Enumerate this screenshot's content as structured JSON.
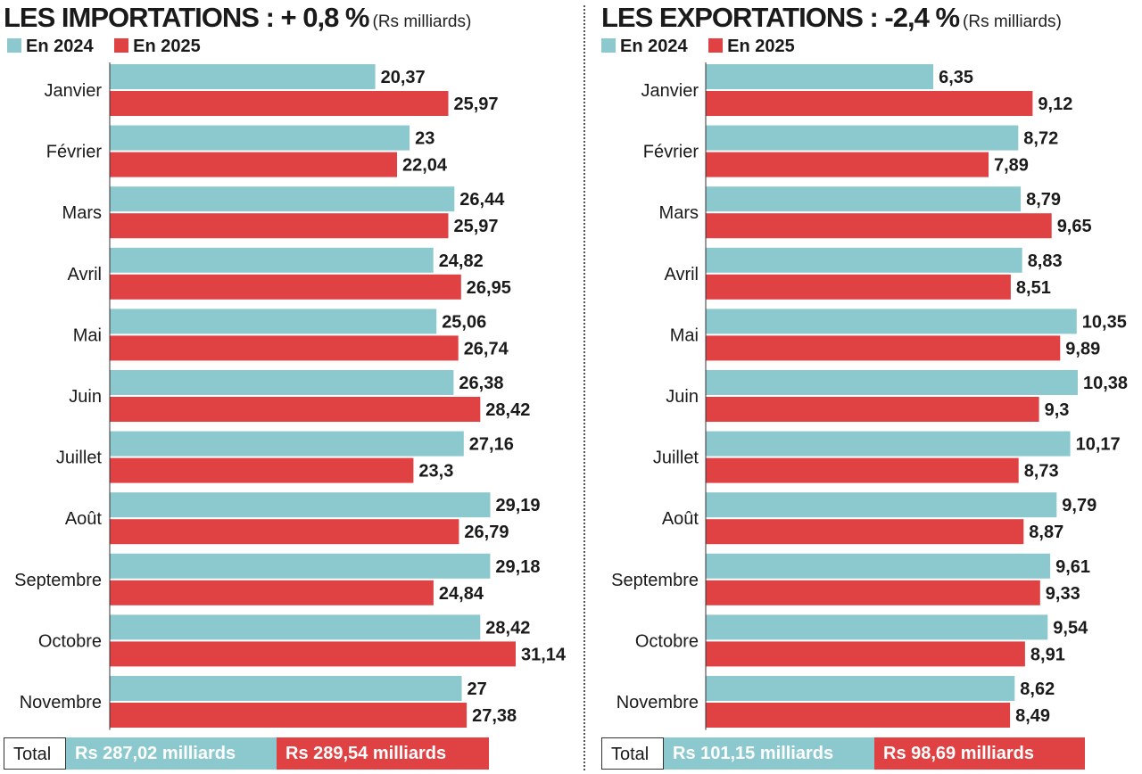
{
  "colors": {
    "y2024": "#8cc9cf",
    "y2025": "#e04244"
  },
  "legend": {
    "y2024": "En 2024",
    "y2025": "En 2025"
  },
  "totals_label": "Total",
  "chart_data": [
    {
      "type": "bar",
      "orientation": "horizontal",
      "title": "LES IMPORTATIONS : + 0,8 %",
      "unit": "(Rs milliards)",
      "categories": [
        "Janvier",
        "Février",
        "Mars",
        "Avril",
        "Mai",
        "Juin",
        "Juillet",
        "Août",
        "Septembre",
        "Octobre",
        "Novembre"
      ],
      "series": [
        {
          "name": "En 2024",
          "values": [
            20.37,
            23,
            26.44,
            24.82,
            25.06,
            26.38,
            27.16,
            29.19,
            29.18,
            28.42,
            27
          ],
          "labels": [
            "20,37",
            "23",
            "26,44",
            "24,82",
            "25,06",
            "26,38",
            "27,16",
            "29,19",
            "29,18",
            "28,42",
            "27"
          ]
        },
        {
          "name": "En 2025",
          "values": [
            25.97,
            22.04,
            25.97,
            26.95,
            26.74,
            28.42,
            23.3,
            26.79,
            24.84,
            31.14,
            27.38
          ],
          "labels": [
            "25,97",
            "22,04",
            "25,97",
            "26,95",
            "26,74",
            "28,42",
            "23,3",
            "26,79",
            "24,84",
            "31,14",
            "27,38"
          ]
        }
      ],
      "xlim": [
        0,
        31.14
      ],
      "totals": {
        "y2024": "Rs 287,02 milliards",
        "y2025": "Rs 289,54 milliards"
      }
    },
    {
      "type": "bar",
      "orientation": "horizontal",
      "title": "LES EXPORTATIONS : -2,4 %",
      "unit": "(Rs milliards)",
      "categories": [
        "Janvier",
        "Février",
        "Mars",
        "Avril",
        "Mai",
        "Juin",
        "Juillet",
        "Août",
        "Septembre",
        "Octobre",
        "Novembre"
      ],
      "series": [
        {
          "name": "En 2024",
          "values": [
            6.35,
            8.72,
            8.79,
            8.83,
            10.35,
            10.38,
            10.17,
            9.79,
            9.61,
            9.54,
            8.62
          ],
          "labels": [
            "6,35",
            "8,72",
            "8,79",
            "8,83",
            "10,35",
            "10,38",
            "10,17",
            "9,79",
            "9,61",
            "9,54",
            "8,62"
          ]
        },
        {
          "name": "En 2025",
          "values": [
            9.12,
            7.89,
            9.65,
            8.51,
            9.89,
            9.3,
            8.73,
            8.87,
            9.33,
            8.91,
            8.49
          ],
          "labels": [
            "9,12",
            "7,89",
            "9,65",
            "8,51",
            "9,89",
            "9,3",
            "8,73",
            "8,87",
            "9,33",
            "8,91",
            "8,49"
          ]
        }
      ],
      "xlim": [
        0,
        10.38
      ],
      "totals": {
        "y2024": "Rs 101,15 milliards",
        "y2025": "Rs 98,69 milliards"
      }
    }
  ]
}
